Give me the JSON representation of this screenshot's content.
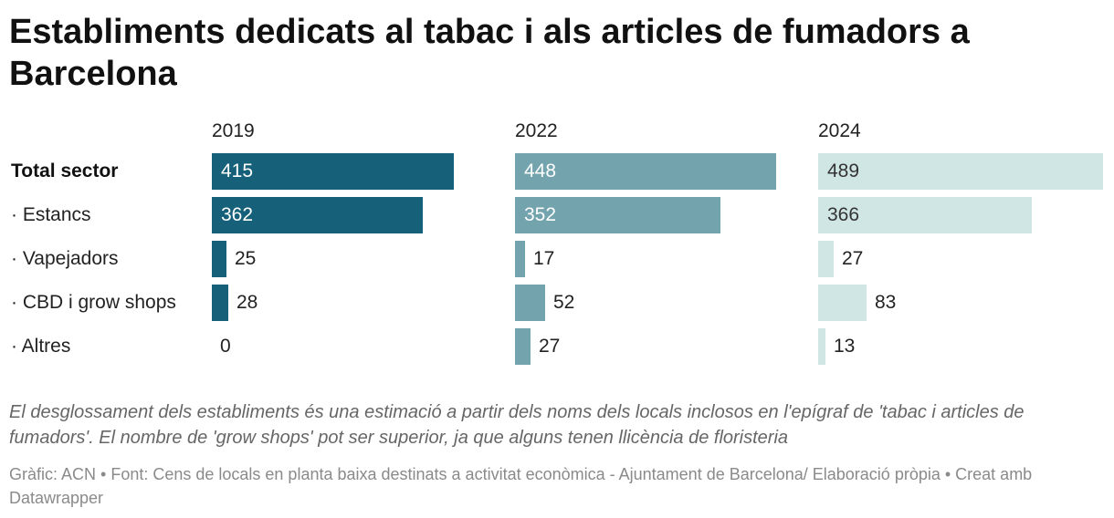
{
  "chart_data": {
    "type": "bar",
    "title": "Establiments dedicats al tabac i als articles de fumadors a Barcelona",
    "categories": [
      "Total sector",
      "· Estancs",
      "· Vapejadors",
      "· CBD i grow shops",
      "· Altres"
    ],
    "series": [
      {
        "name": "2019",
        "values": [
          415,
          362,
          25,
          28,
          0
        ],
        "color": "#16607a"
      },
      {
        "name": "2022",
        "values": [
          448,
          352,
          17,
          52,
          27
        ],
        "color": "#73a4ae"
      },
      {
        "name": "2024",
        "values": [
          489,
          366,
          27,
          83,
          13
        ],
        "color": "#d0e6e4"
      }
    ],
    "xlim": [
      0,
      489
    ],
    "note": "El desglossament dels establiments és una estimació a partir dels noms dels locals inclosos en l'epígraf de 'tabac i articles de fumadors'. El nombre de 'grow shops' pot ser superior, ja que alguns tenen llicència de floristeria",
    "source": "Gràfic: ACN • Font: Cens de locals en planta baixa destinats a activitat econòmica - Ajuntament de Barcelona/ Elaboració pròpia • Creat amb Datawrapper"
  }
}
